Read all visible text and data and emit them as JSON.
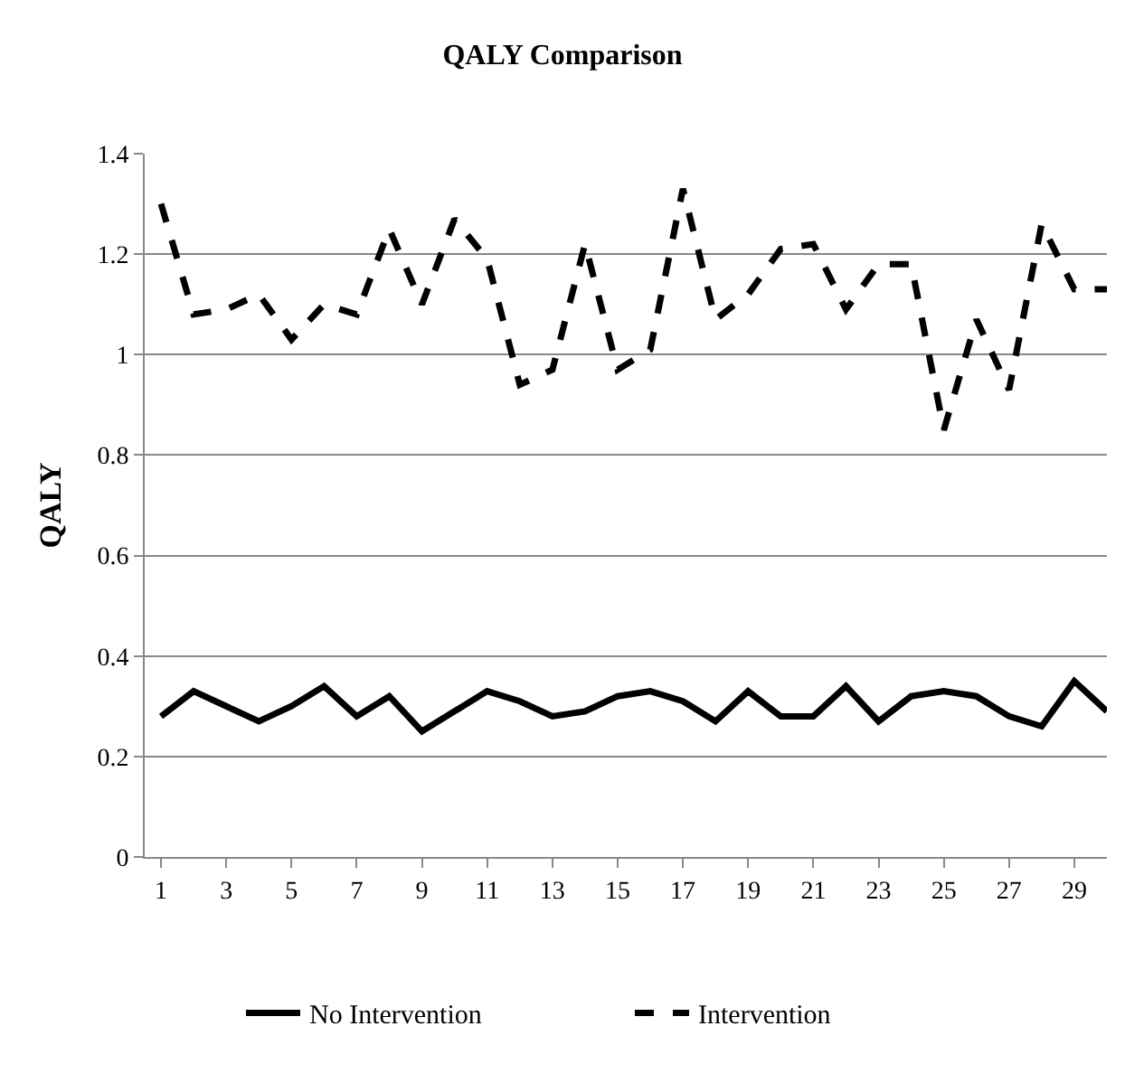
{
  "chart_data": {
    "type": "line",
    "title": "QALY Comparison",
    "ylabel": "QALY",
    "x": [
      1,
      2,
      3,
      4,
      5,
      6,
      7,
      8,
      9,
      10,
      11,
      12,
      13,
      14,
      15,
      16,
      17,
      18,
      19,
      20,
      21,
      22,
      23,
      24,
      25,
      26,
      27,
      28,
      29,
      30
    ],
    "series": [
      {
        "name": "No Intervention",
        "color": "#000000",
        "line_style": "solid",
        "values": [
          0.28,
          0.33,
          0.3,
          0.27,
          0.3,
          0.34,
          0.28,
          0.32,
          0.25,
          0.29,
          0.33,
          0.31,
          0.28,
          0.29,
          0.32,
          0.33,
          0.31,
          0.27,
          0.33,
          0.28,
          0.28,
          0.34,
          0.27,
          0.32,
          0.33,
          0.32,
          0.28,
          0.26,
          0.35,
          0.29
        ]
      },
      {
        "name": "Intervention",
        "color": "#000000",
        "line_style": "dashed",
        "values": [
          1.3,
          1.08,
          1.09,
          1.12,
          1.03,
          1.1,
          1.08,
          1.25,
          1.1,
          1.27,
          1.19,
          0.94,
          0.97,
          1.22,
          0.97,
          1.01,
          1.33,
          1.07,
          1.12,
          1.21,
          1.22,
          1.09,
          1.18,
          1.18,
          0.85,
          1.07,
          0.93,
          1.26,
          1.13,
          1.13
        ]
      }
    ],
    "xlim": [
      0.5,
      30
    ],
    "xticks": [
      1,
      3,
      5,
      7,
      9,
      11,
      13,
      15,
      17,
      19,
      21,
      23,
      25,
      27,
      29
    ],
    "ylim": [
      0,
      1.4
    ],
    "yticks": [
      0,
      0.2,
      0.4,
      0.6,
      0.8,
      1,
      1.2,
      1.4
    ],
    "grid": "y",
    "legend": "bottom",
    "marker": "none"
  }
}
